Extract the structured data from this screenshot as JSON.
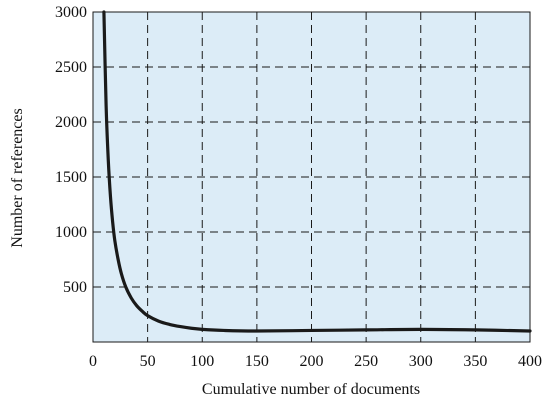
{
  "chart_data": {
    "type": "line",
    "title": "",
    "xlabel": "Cumulative number of documents",
    "ylabel": "Number of references",
    "xlim": [
      0,
      400
    ],
    "ylim": [
      0,
      3000
    ],
    "x_ticks": [
      "0",
      "50",
      "100",
      "150",
      "200",
      "250",
      "300",
      "350",
      "400"
    ],
    "y_ticks": [
      "500",
      "1000",
      "1500",
      "2000",
      "2500",
      "3000"
    ],
    "grid": true,
    "grid_style": "dashed",
    "legend": "none",
    "colors": {
      "plot_background": "#dcecf7",
      "line": "#1a1a1a",
      "grid": "#1a1a1a"
    },
    "series": [
      {
        "x": [
          10,
          12,
          14,
          16,
          18,
          20,
          23,
          26,
          30,
          35,
          40,
          45,
          50,
          60,
          70,
          80,
          90,
          100,
          120,
          150,
          200,
          250,
          300,
          350,
          400
        ],
        "y": [
          3000,
          2150,
          1650,
          1320,
          1090,
          920,
          750,
          620,
          500,
          400,
          330,
          280,
          240,
          190,
          160,
          140,
          125,
          115,
          105,
          100,
          105,
          110,
          115,
          110,
          100
        ]
      }
    ]
  }
}
